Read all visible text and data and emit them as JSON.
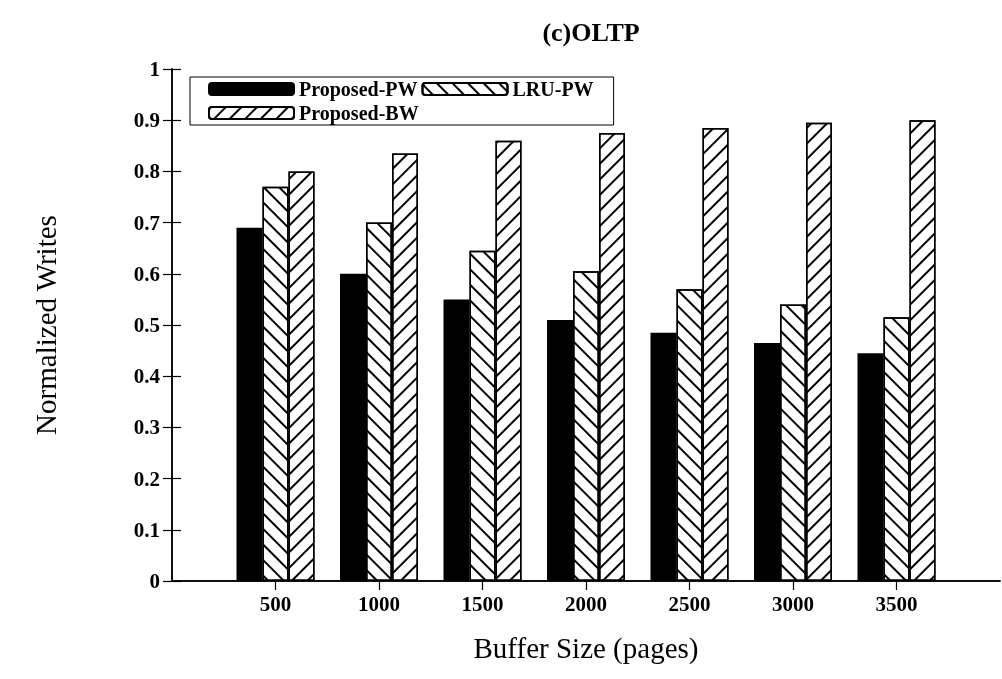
{
  "chart_data": {
    "type": "bar",
    "title": "(c)OLTP",
    "xlabel": "Buffer Size (pages)",
    "ylabel": "Normalized Writes",
    "x": [
      500,
      1000,
      1500,
      2000,
      2500,
      3000,
      3500
    ],
    "series": [
      {
        "name": "Proposed-PW",
        "color": "#000000",
        "values": [
          0.69,
          0.6,
          0.55,
          0.51,
          0.485,
          0.465,
          0.445
        ]
      },
      {
        "name": "LRU-PW",
        "color": "#ffffff",
        "values": [
          0.77,
          0.7,
          0.645,
          0.605,
          0.57,
          0.54,
          0.515
        ]
      },
      {
        "name": "Proposed-BW",
        "color": "#ffffff",
        "values": [
          0.8,
          0.835,
          0.86,
          0.875,
          0.885,
          0.895,
          0.9
        ]
      }
    ],
    "xlim": [
      0,
      4000
    ],
    "xticks": [
      500,
      1000,
      1500,
      2000,
      2500,
      3000,
      3500
    ],
    "ylim": [
      0,
      1
    ],
    "yticks": [
      0,
      0.1,
      0.2,
      0.3,
      0.4,
      0.5,
      0.6,
      0.7,
      0.8,
      0.9,
      1
    ],
    "grid": false,
    "legend": "top left"
  }
}
